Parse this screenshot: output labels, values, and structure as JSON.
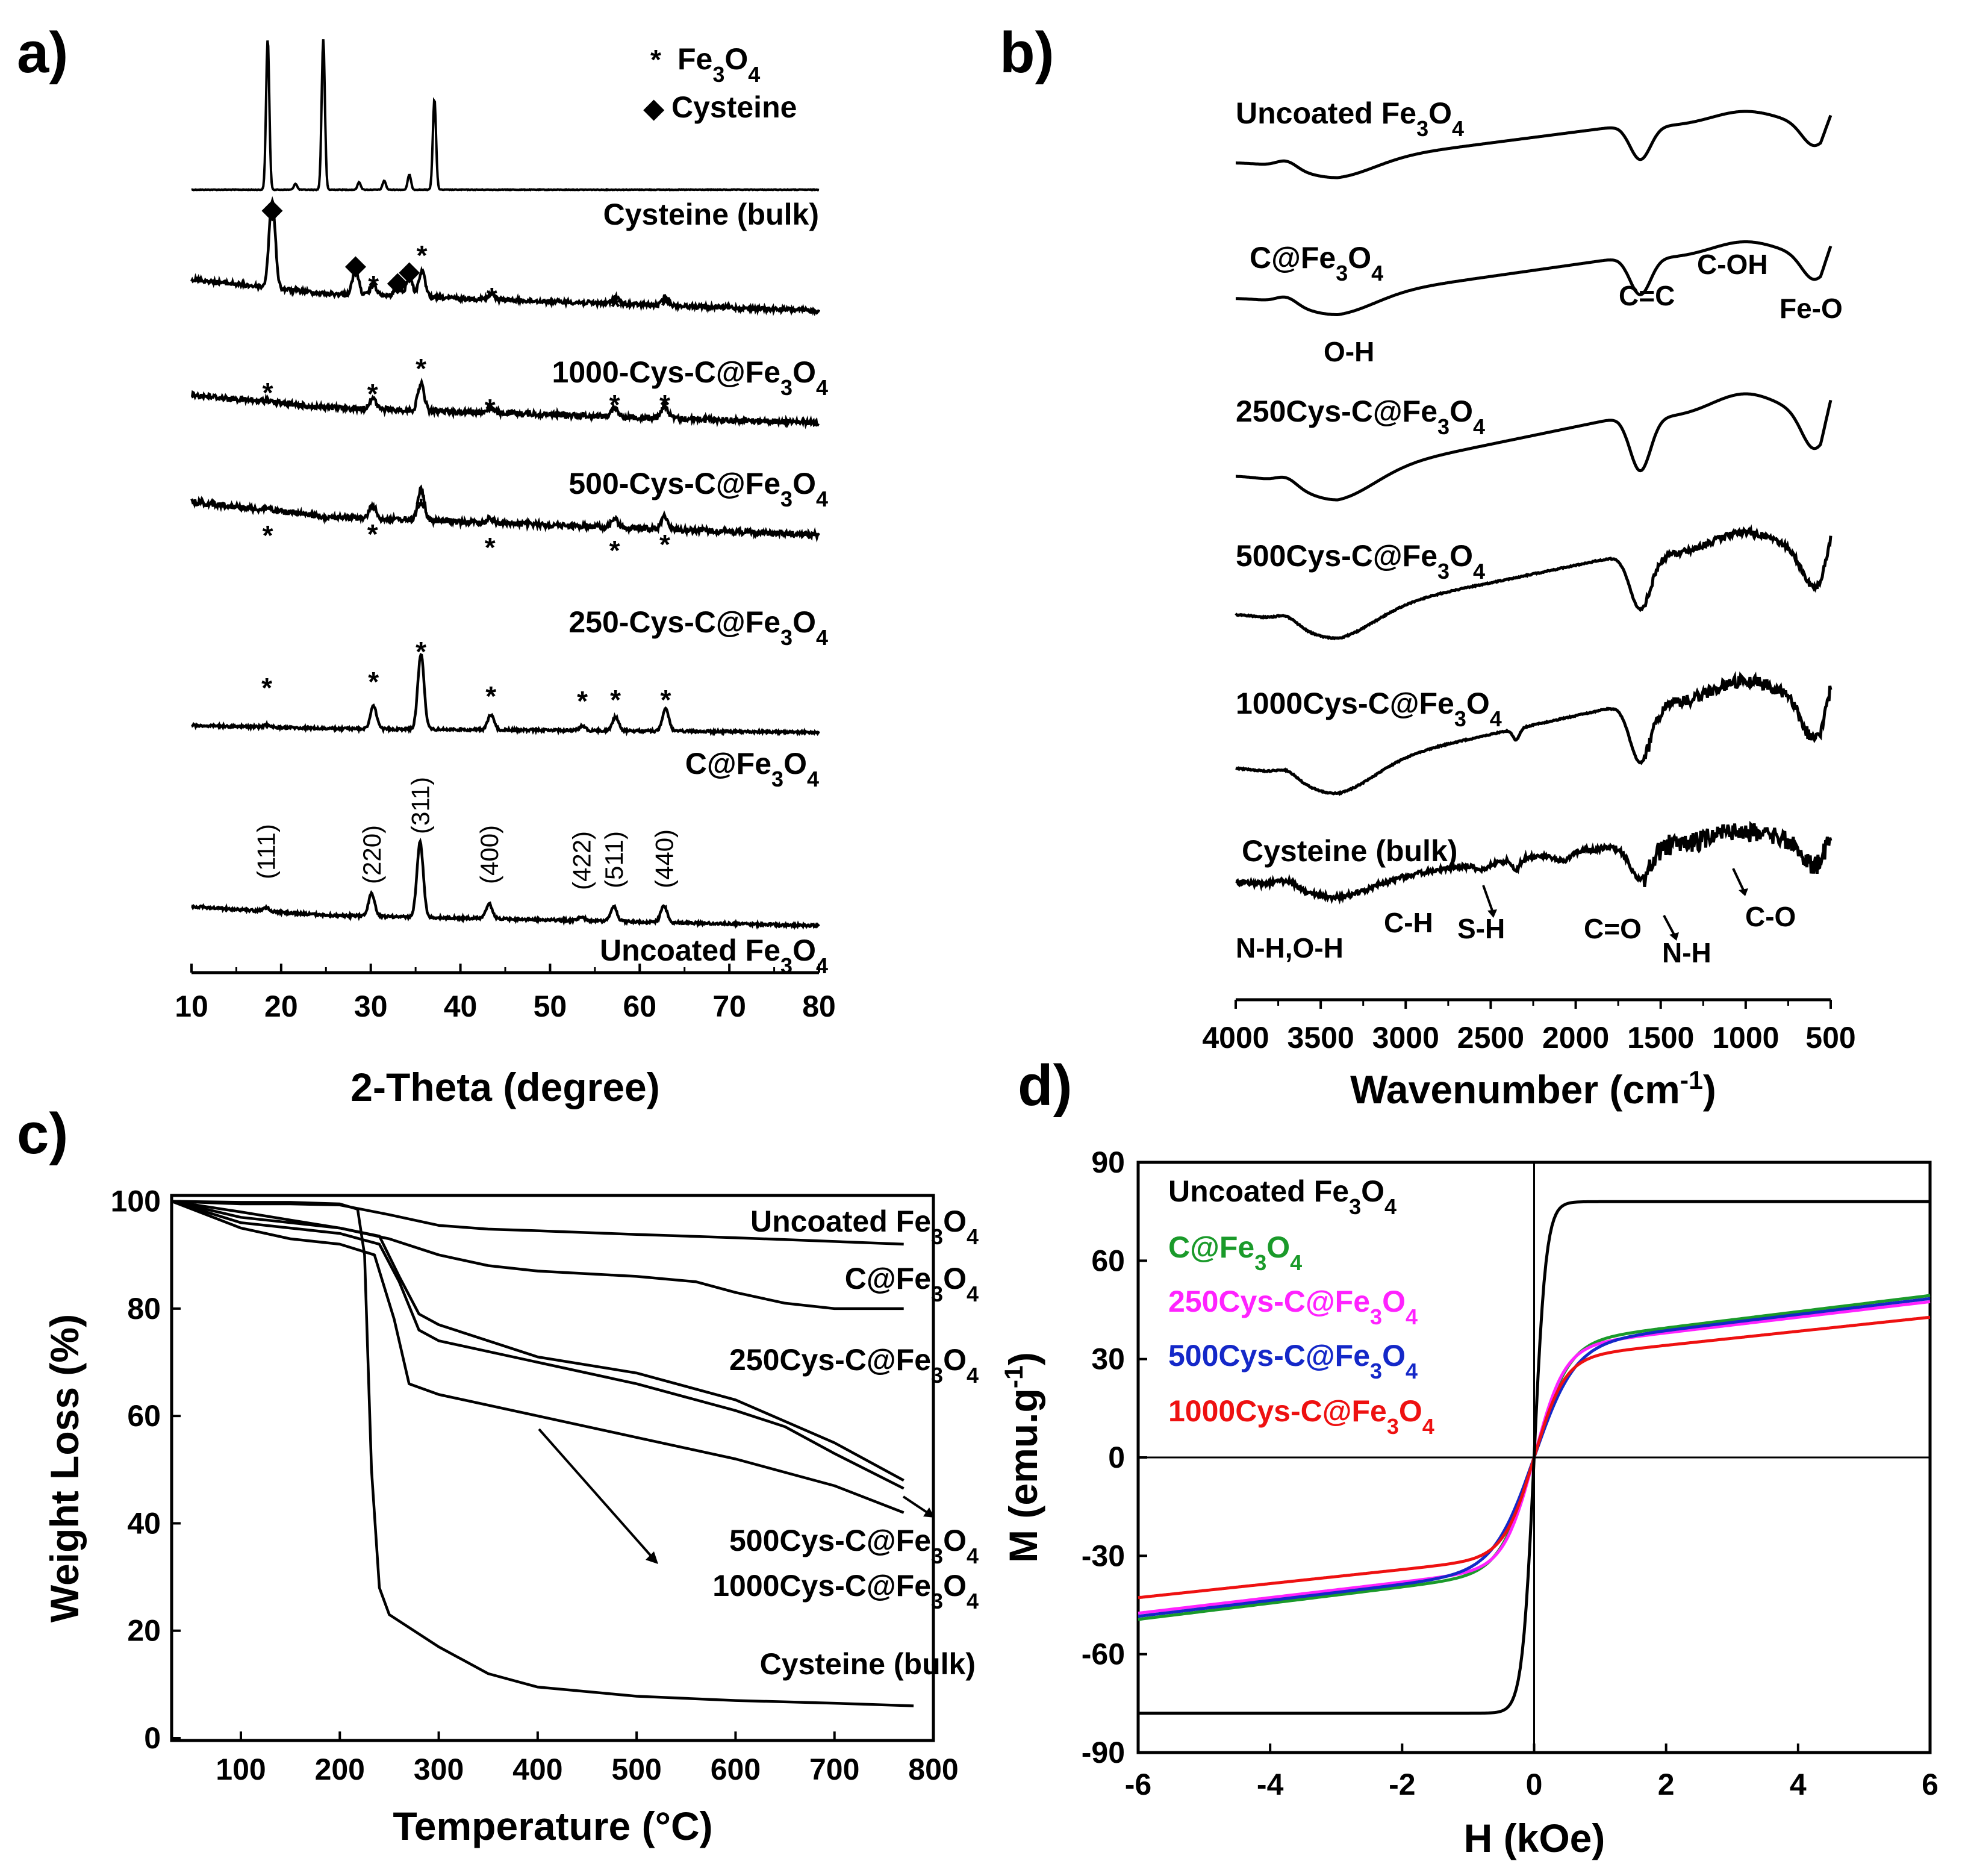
{
  "chart_data": [
    {
      "panel": "a)",
      "type": "line",
      "xlabel": "2-Theta (degree)",
      "ylabel": "",
      "xlim": [
        10,
        80
      ],
      "xticks": [
        "10",
        "20",
        "30",
        "40",
        "50",
        "60",
        "70",
        "80"
      ],
      "legend": [
        {
          "marker": "*",
          "name": "Fe3O4"
        },
        {
          "marker": "◆",
          "name": "Cysteine"
        }
      ],
      "series": [
        {
          "name": "Cysteine (bulk)",
          "peaks": [
            {
              "x": 18.5,
              "h": 1.0
            },
            {
              "x": 24.7,
              "h": 1.0
            },
            {
              "x": 37.1,
              "h": 0.6
            },
            {
              "x": 34.3,
              "h": 0.1
            },
            {
              "x": 31.5,
              "h": 0.06
            },
            {
              "x": 28.7,
              "h": 0.05
            },
            {
              "x": 21.6,
              "h": 0.04
            }
          ]
        },
        {
          "name": "1000-Cys-C@Fe3O4",
          "peaks": [
            {
              "x": 19.0,
              "h": 1.0
            },
            {
              "x": 28.3,
              "h": 0.28
            },
            {
              "x": 30.3,
              "h": 0.12
            },
            {
              "x": 33.0,
              "h": 0.12
            },
            {
              "x": 34.3,
              "h": 0.22
            },
            {
              "x": 35.7,
              "h": 0.3
            },
            {
              "x": 43.5,
              "h": 0.06
            },
            {
              "x": 57.3,
              "h": 0.08
            },
            {
              "x": 62.9,
              "h": 0.1
            }
          ]
        },
        {
          "name": "500-Cys-C@Fe3O4",
          "peaks": [
            {
              "x": 18.5,
              "h": 0.05
            },
            {
              "x": 30.2,
              "h": 0.25
            },
            {
              "x": 35.6,
              "h": 0.6
            },
            {
              "x": 43.3,
              "h": 0.1
            },
            {
              "x": 57.2,
              "h": 0.2
            },
            {
              "x": 62.8,
              "h": 0.28
            }
          ]
        },
        {
          "name": "250-Cys-C@Fe3O4",
          "peaks": [
            {
              "x": 18.5,
              "h": 0.05
            },
            {
              "x": 30.2,
              "h": 0.3
            },
            {
              "x": 35.6,
              "h": 0.7
            },
            {
              "x": 43.3,
              "h": 0.1
            },
            {
              "x": 57.2,
              "h": 0.2
            },
            {
              "x": 62.8,
              "h": 0.3
            }
          ]
        },
        {
          "name": "C@Fe3O4",
          "peaks": [
            {
              "x": 18.4,
              "h": 0.03
            },
            {
              "x": 30.3,
              "h": 0.3
            },
            {
              "x": 35.6,
              "h": 1.0
            },
            {
              "x": 43.4,
              "h": 0.2
            },
            {
              "x": 53.6,
              "h": 0.06
            },
            {
              "x": 57.3,
              "h": 0.18
            },
            {
              "x": 62.9,
              "h": 0.3
            }
          ]
        },
        {
          "name": "Uncoated Fe3O4",
          "peaks": [
            {
              "x": 18.3,
              "h": 0.05
            },
            {
              "x": 30.1,
              "h": 0.3
            },
            {
              "x": 35.5,
              "h": 1.0
            },
            {
              "x": 43.2,
              "h": 0.2
            },
            {
              "x": 53.5,
              "h": 0.05
            },
            {
              "x": 57.1,
              "h": 0.2
            },
            {
              "x": 62.7,
              "h": 0.22
            }
          ]
        }
      ],
      "miller_indices": [
        {
          "label": "(111)",
          "x": 18.3
        },
        {
          "label": "(220)",
          "x": 30.1
        },
        {
          "label": "(311)",
          "x": 35.5
        },
        {
          "label": "(400)",
          "x": 43.2
        },
        {
          "label": "(422)",
          "x": 53.5
        },
        {
          "label": "(511)",
          "x": 57.1
        },
        {
          "label": "(440)",
          "x": 62.7
        }
      ],
      "star_marks": [
        {
          "series": "1000-Cys-C@Fe3O4",
          "x": [
            30.3,
            35.7,
            43.5,
            57.3,
            62.9
          ]
        },
        {
          "series": "500-Cys-C@Fe3O4",
          "x": [
            18.5,
            30.2,
            35.6,
            43.3,
            57.2,
            62.8
          ]
        },
        {
          "series": "250-Cys-C@Fe3O4",
          "x": [
            18.5,
            30.2,
            35.6,
            43.3,
            57.2,
            62.8
          ]
        },
        {
          "series": "C@Fe3O4",
          "x": [
            18.4,
            30.3,
            35.6,
            43.4,
            53.6,
            57.3,
            62.9
          ]
        }
      ],
      "diamond_marks": [
        {
          "series": "1000-Cys-C@Fe3O4",
          "x": [
            19.0,
            28.3,
            33.0,
            34.3
          ]
        }
      ]
    },
    {
      "panel": "b)",
      "type": "line",
      "xlabel": "Wavenumber (cm-1)",
      "ylabel": "",
      "xlim": [
        4000,
        500
      ],
      "xticks": [
        "4000",
        "3500",
        "3000",
        "2500",
        "2000",
        "1500",
        "1000",
        "500"
      ],
      "series": [
        {
          "name": "Uncoated Fe3O4"
        },
        {
          "name": "C@Fe3O4"
        },
        {
          "name": "250Cys-C@Fe3O4"
        },
        {
          "name": "500Cys-C@Fe3O4"
        },
        {
          "name": "1000Cys-C@Fe3O4"
        },
        {
          "name": "Cysteine (bulk)"
        }
      ],
      "annotations_c": [
        "O-H",
        "C=C",
        "C-OH",
        "Fe-O"
      ],
      "annotations_bulk": [
        "N-H,O-H",
        "C-H",
        "S-H",
        "C=O",
        "N-H",
        "C-O"
      ]
    },
    {
      "panel": "c)",
      "type": "line",
      "xlabel": "Temperature (°C)",
      "ylabel": "Weight Loss (%)",
      "xlim": [
        30,
        800
      ],
      "ylim": [
        0,
        100
      ],
      "xticks": [
        "100",
        "200",
        "300",
        "400",
        "500",
        "600",
        "700",
        "800"
      ],
      "yticks": [
        "0",
        "20",
        "40",
        "60",
        "80",
        "100"
      ],
      "series": [
        {
          "name": "Uncoated Fe3O4",
          "x": [
            30,
            100,
            150,
            200,
            250,
            300,
            350,
            400,
            500,
            600,
            700,
            770
          ],
          "y": [
            100,
            99.5,
            99.5,
            99.3,
            97.5,
            95.5,
            94.8,
            94.5,
            93.8,
            93.2,
            92.5,
            92.0
          ]
        },
        {
          "name": "C@Fe3O4",
          "x": [
            30,
            100,
            150,
            200,
            250,
            300,
            350,
            400,
            500,
            560,
            600,
            650,
            700,
            770
          ],
          "y": [
            100,
            98,
            96.5,
            95,
            93,
            90,
            88,
            87,
            86,
            85,
            83,
            81,
            80,
            80
          ]
        },
        {
          "name": "250Cys-C@Fe3O4",
          "x": [
            30,
            100,
            150,
            200,
            240,
            260,
            280,
            300,
            400,
            500,
            600,
            650,
            700,
            770
          ],
          "y": [
            100,
            97,
            96,
            95,
            93.5,
            86,
            79,
            77,
            71,
            68,
            63,
            59,
            55,
            48
          ]
        },
        {
          "name": "500Cys-C@Fe3O4",
          "x": [
            30,
            100,
            150,
            200,
            240,
            260,
            280,
            300,
            400,
            500,
            600,
            650,
            700,
            770
          ],
          "y": [
            100,
            96,
            95,
            94,
            92,
            85,
            76,
            74,
            70,
            66,
            61,
            58,
            53,
            46.5
          ]
        },
        {
          "name": "1000Cys-C@Fe3O4",
          "x": [
            30,
            100,
            150,
            200,
            235,
            255,
            270,
            300,
            400,
            500,
            600,
            700,
            770
          ],
          "y": [
            100,
            95,
            93,
            92,
            90,
            78,
            66,
            64,
            60,
            56,
            52,
            47,
            42
          ]
        },
        {
          "name": "Cysteine (bulk)",
          "x": [
            30,
            100,
            150,
            200,
            218,
            225,
            232,
            240,
            250,
            300,
            350,
            400,
            500,
            600,
            700,
            780
          ],
          "y": [
            100,
            99.8,
            99.8,
            99.5,
            98.5,
            90,
            50,
            28,
            23,
            17,
            12,
            9.5,
            7.8,
            7,
            6.5,
            6
          ]
        }
      ]
    },
    {
      "panel": "d)",
      "type": "line",
      "xlabel": "H (kOe)",
      "ylabel": "M (emu.g-1)",
      "xlim": [
        -6,
        6
      ],
      "ylim": [
        -90,
        90
      ],
      "xticks": [
        "-6",
        "-4",
        "-2",
        "0",
        "2",
        "4",
        "6"
      ],
      "yticks": [
        "-90",
        "-60",
        "-30",
        "0",
        "30",
        "60",
        "90"
      ],
      "series": [
        {
          "name": "Uncoated Fe3O4",
          "color": "#000000",
          "ms": 78,
          "a": 0.18
        },
        {
          "name": "C@Fe3O4",
          "color": "#1a9a2a",
          "ms": 52,
          "a": 0.5
        },
        {
          "name": "250Cys-C@Fe3O4",
          "color": "#ff22ff",
          "ms": 50,
          "a": 0.45
        },
        {
          "name": "500Cys-C@Fe3O4",
          "color": "#1428c8",
          "ms": 51,
          "a": 0.6
        },
        {
          "name": "1000Cys-C@Fe3O4",
          "color": "#ee1111",
          "ms": 45,
          "a": 0.45
        }
      ]
    }
  ]
}
